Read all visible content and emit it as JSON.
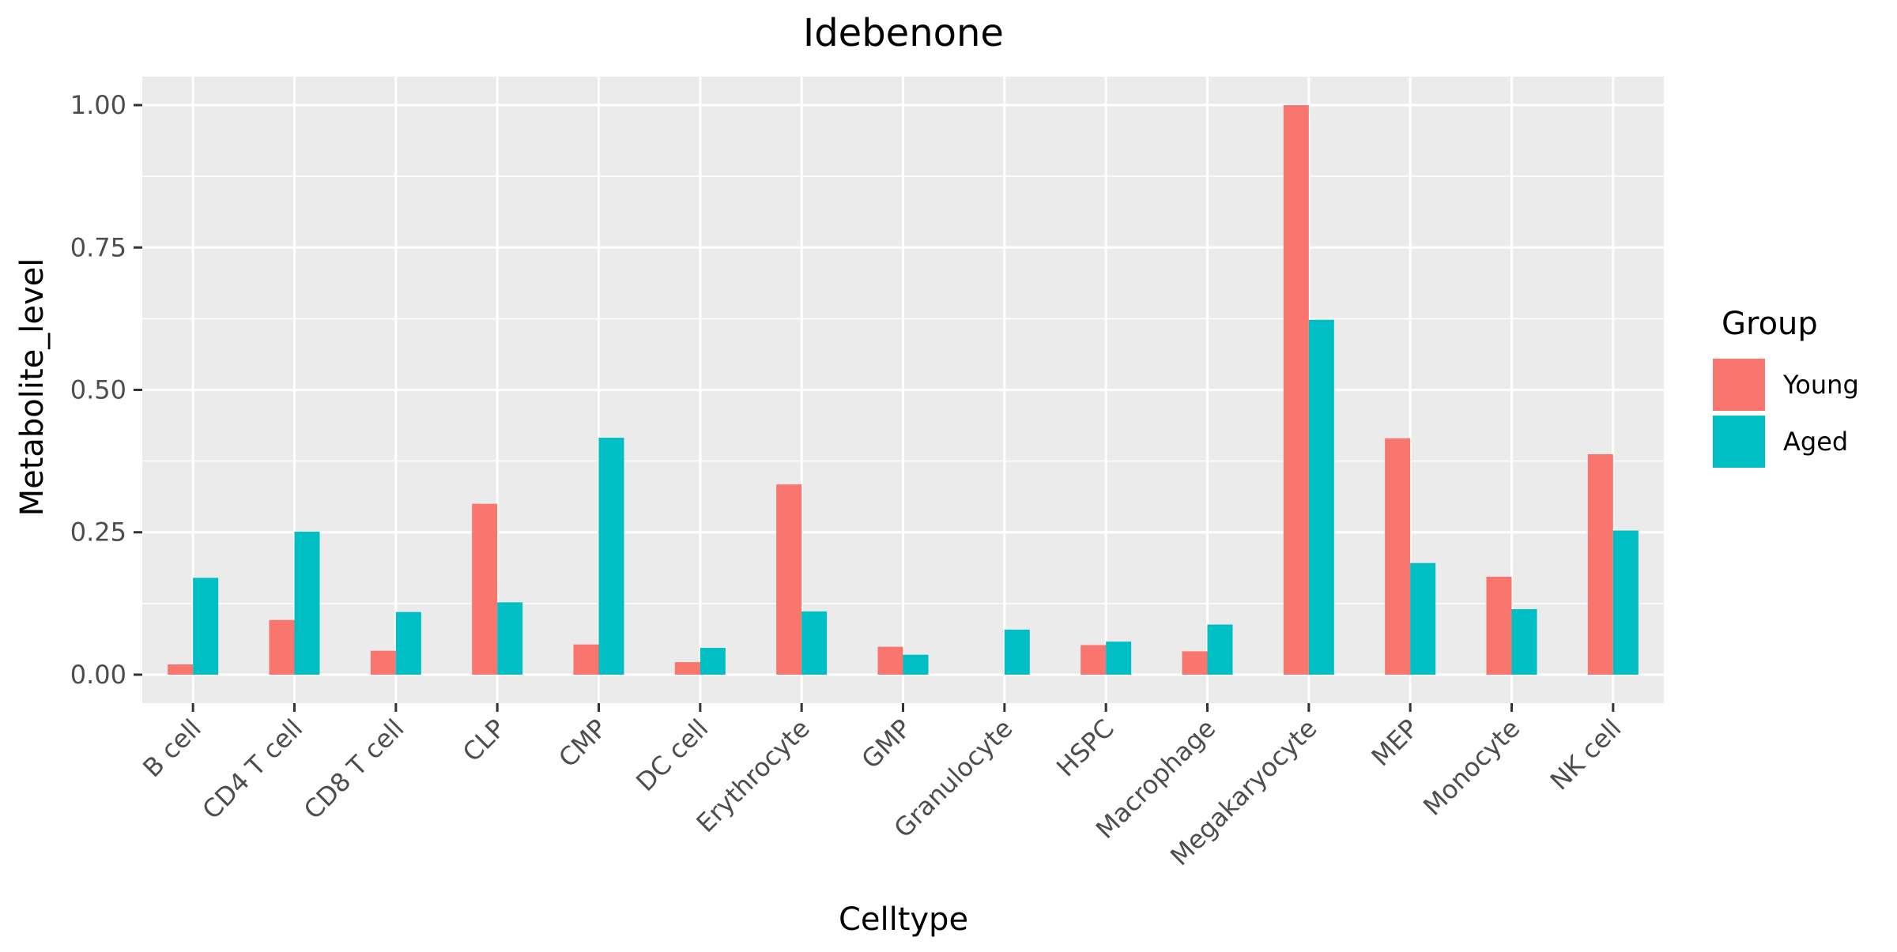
{
  "chart_data": {
    "type": "bar",
    "title": "Idebenone",
    "xlabel": "Celltype",
    "ylabel": "Metabolite_level",
    "categories": [
      "B cell",
      "CD4 T cell",
      "CD8 T cell",
      "CLP",
      "CMP",
      "DC cell",
      "Erythrocyte",
      "GMP",
      "Granulocyte",
      "HSPC",
      "Macrophage",
      "Megakaryocyte",
      "MEP",
      "Monocyte",
      "NK cell"
    ],
    "series": [
      {
        "name": "Young",
        "color": "#F8766D",
        "values": [
          0.018,
          0.096,
          0.042,
          0.3,
          0.053,
          0.022,
          0.334,
          0.049,
          null,
          0.052,
          0.041,
          1.0,
          0.415,
          0.172,
          0.387
        ]
      },
      {
        "name": "Aged",
        "color": "#00BFC4",
        "values": [
          0.17,
          0.251,
          0.11,
          0.127,
          0.416,
          0.047,
          0.111,
          0.035,
          0.079,
          0.058,
          0.088,
          0.623,
          0.196,
          0.115,
          0.253
        ]
      }
    ],
    "ylim": [
      -0.05,
      1.05
    ],
    "yticks": [
      0.0,
      0.25,
      0.5,
      0.75,
      1.0
    ],
    "ytick_labels": [
      "0.00",
      "0.25",
      "0.50",
      "0.75",
      "1.00"
    ],
    "grid": true,
    "legend": {
      "title": "Group",
      "placement": "right"
    },
    "panel_background": "#EBEBEB",
    "grid_color": "#FFFFFF"
  }
}
